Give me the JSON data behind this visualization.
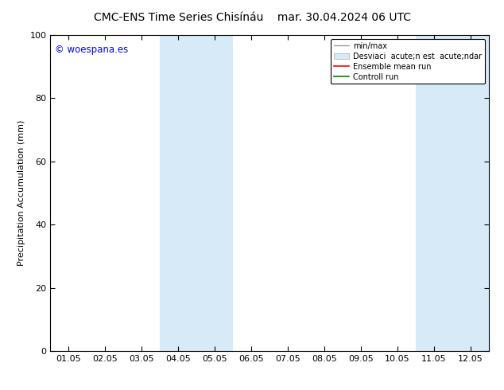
{
  "title_left": "CMC-ENS Time Series Chisínáu",
  "title_right": "mar. 30.04.2024 06 UTC",
  "ylabel": "Precipitation Accumulation (mm)",
  "ylim": [
    0,
    100
  ],
  "yticks": [
    0,
    20,
    40,
    60,
    80,
    100
  ],
  "xtick_labels": [
    "01.05",
    "02.05",
    "03.05",
    "04.05",
    "05.05",
    "06.05",
    "07.05",
    "08.05",
    "09.05",
    "10.05",
    "11.05",
    "12.05"
  ],
  "shaded_regions": [
    {
      "xstart": 3.5,
      "xend": 5.5,
      "color": "#d6eaf8"
    },
    {
      "xstart": 10.5,
      "xend": 12.5,
      "color": "#d6eaf8"
    }
  ],
  "watermark": "© woespana.es",
  "watermark_color": "#0000ee",
  "bg_color": "#ffffff",
  "plot_bg_color": "#ffffff",
  "spine_color": "#000000",
  "title_fontsize": 10,
  "axis_fontsize": 8,
  "tick_fontsize": 8,
  "legend_minmax_color": "#999999",
  "legend_patch_color": "#d6eaf8",
  "legend_mean_color": "#ff0000",
  "legend_control_color": "#008000",
  "legend_label_minmax": "min/max",
  "legend_label_std": "Desviaci  acute;n est  acute;ndar",
  "legend_label_mean": "Ensemble mean run",
  "legend_label_control": "Controll run"
}
